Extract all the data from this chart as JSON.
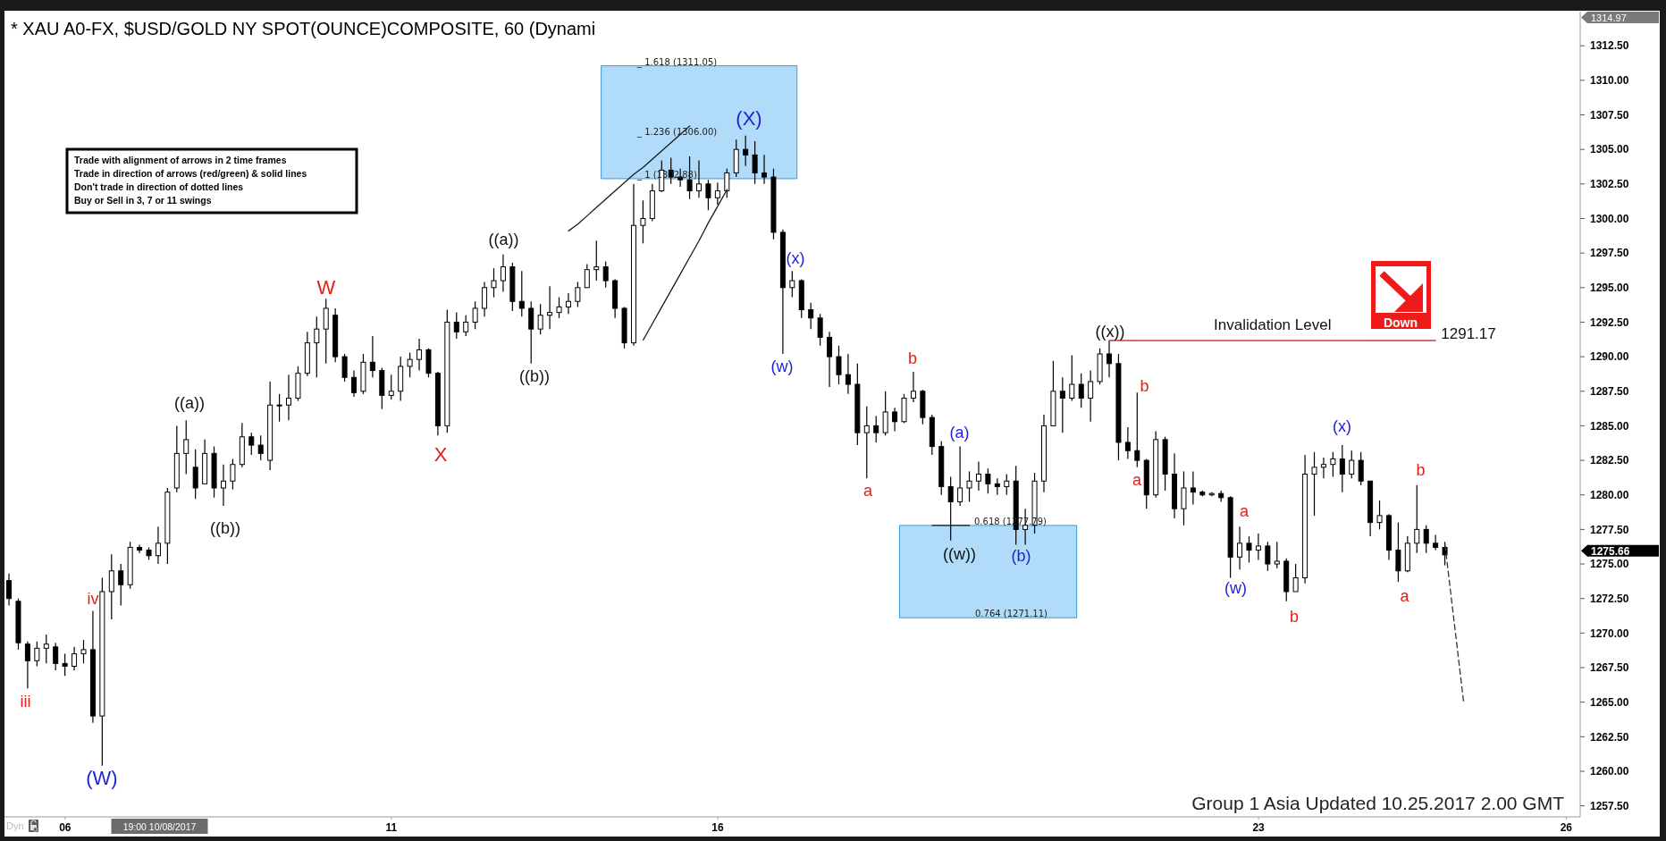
{
  "chart_data": {
    "type": "candlestick",
    "title": "* XAU A0-FX, $USD/GOLD NY SPOT(OUNCE)COMPOSITE, 60 (Dynami",
    "color": "#000000",
    "categories": [
      null,
      null,
      null,
      null,
      null,
      null,
      "06",
      null,
      null,
      null,
      null,
      null,
      null,
      null,
      null,
      null,
      null,
      null,
      null,
      null,
      null,
      null,
      null,
      null,
      null,
      null,
      null,
      null,
      null,
      null,
      null,
      null,
      null,
      null,
      null,
      null,
      null,
      null,
      null,
      null,
      null,
      "11",
      null,
      null,
      null,
      null,
      null,
      null,
      null,
      null,
      null,
      null,
      null,
      null,
      null,
      null,
      null,
      null,
      null,
      null,
      null,
      null,
      null,
      null,
      null,
      null,
      null,
      null,
      null,
      null,
      null,
      null,
      null,
      null,
      null,
      null,
      "16",
      null,
      null,
      null,
      null,
      null,
      null,
      null,
      null,
      null,
      null,
      null,
      null,
      null,
      null,
      null,
      null,
      null,
      null,
      null,
      null,
      null,
      null,
      null,
      null,
      null,
      null,
      null,
      null,
      null,
      null,
      null,
      null,
      null,
      null,
      null,
      null,
      null,
      null,
      null,
      null,
      null,
      null,
      null,
      null,
      null,
      null,
      null,
      null,
      null,
      null,
      null,
      null,
      null,
      null,
      null,
      null,
      null,
      "23",
      null,
      null,
      null,
      null,
      null,
      null,
      null,
      null,
      null,
      null,
      null,
      null,
      null,
      null,
      null,
      null,
      null,
      null,
      null,
      null,
      null,
      null,
      null,
      null,
      null,
      null,
      null,
      null,
      null,
      null,
      null,
      null,
      "26",
      null
    ],
    "ohlc": [
      [
        1273.8,
        1274.3,
        1272.0,
        1272.5
      ],
      [
        1272.3,
        1272.5,
        1268.8,
        1269.3
      ],
      [
        1269.2,
        1269.4,
        1266.0,
        1268.0
      ],
      [
        1268.0,
        1269.4,
        1267.6,
        1268.9
      ],
      [
        1268.9,
        1269.9,
        1267.8,
        1269.2
      ],
      [
        1269.0,
        1269.3,
        1267.3,
        1267.8
      ],
      [
        1267.8,
        1268.5,
        1266.9,
        1267.6
      ],
      [
        1267.6,
        1269.0,
        1267.3,
        1268.5
      ],
      [
        1268.5,
        1269.5,
        1267.8,
        1268.8
      ],
      [
        1268.8,
        1271.6,
        1263.5,
        1264.0
      ],
      [
        1264.0,
        1274.0,
        1260.4,
        1273.0
      ],
      [
        1273.0,
        1275.7,
        1271.0,
        1274.5
      ],
      [
        1274.5,
        1275.0,
        1272.0,
        1273.5
      ],
      [
        1273.5,
        1276.6,
        1273.2,
        1276.2
      ],
      [
        1276.2,
        1276.4,
        1275.8,
        1276.0
      ],
      [
        1276.0,
        1276.2,
        1275.3,
        1275.6
      ],
      [
        1275.6,
        1277.7,
        1275.0,
        1276.5
      ],
      [
        1276.5,
        1280.5,
        1275.0,
        1280.2
      ],
      [
        1280.5,
        1285.0,
        1280.2,
        1283.0
      ],
      [
        1283.0,
        1285.4,
        1281.5,
        1284.0
      ],
      [
        1282.0,
        1283.3,
        1279.7,
        1280.5
      ],
      [
        1280.8,
        1284.0,
        1280.8,
        1283.0
      ],
      [
        1283.0,
        1283.5,
        1279.8,
        1280.5
      ],
      [
        1280.5,
        1282.2,
        1279.2,
        1281.0
      ],
      [
        1281.0,
        1282.6,
        1280.4,
        1282.2
      ],
      [
        1282.2,
        1285.2,
        1282.0,
        1284.2
      ],
      [
        1284.2,
        1284.5,
        1282.9,
        1283.6
      ],
      [
        1283.6,
        1284.3,
        1282.5,
        1283.0
      ],
      [
        1282.5,
        1288.2,
        1281.8,
        1286.5
      ],
      [
        1286.5,
        1287.3,
        1285.3,
        1286.5
      ],
      [
        1286.5,
        1288.7,
        1285.4,
        1287.0
      ],
      [
        1287.0,
        1289.3,
        1286.8,
        1288.8
      ],
      [
        1288.8,
        1291.8,
        1288.6,
        1291.0
      ],
      [
        1291.0,
        1292.9,
        1288.5,
        1292.0
      ],
      [
        1292.0,
        1294.2,
        1289.5,
        1293.5
      ],
      [
        1293.0,
        1293.5,
        1289.6,
        1290.0
      ],
      [
        1290.0,
        1290.2,
        1288.2,
        1288.5
      ],
      [
        1288.5,
        1289.0,
        1287.1,
        1287.4
      ],
      [
        1287.5,
        1290.2,
        1287.3,
        1289.6
      ],
      [
        1289.6,
        1291.5,
        1288.5,
        1289.0
      ],
      [
        1289.0,
        1289.2,
        1286.2,
        1287.2
      ],
      [
        1287.2,
        1288.7,
        1286.9,
        1287.5
      ],
      [
        1287.5,
        1290.0,
        1286.8,
        1289.3
      ],
      [
        1289.3,
        1290.3,
        1288.5,
        1289.8
      ],
      [
        1289.8,
        1291.3,
        1289.0,
        1290.5
      ],
      [
        1290.5,
        1290.6,
        1288.5,
        1288.8
      ],
      [
        1288.8,
        1288.9,
        1284.3,
        1285.0
      ],
      [
        1285.0,
        1293.4,
        1284.5,
        1292.5
      ],
      [
        1292.5,
        1293.2,
        1291.3,
        1291.8
      ],
      [
        1291.8,
        1293.0,
        1291.5,
        1292.5
      ],
      [
        1292.5,
        1294.0,
        1292.0,
        1293.5
      ],
      [
        1293.5,
        1295.4,
        1292.9,
        1295.0
      ],
      [
        1295.0,
        1296.4,
        1294.3,
        1295.5
      ],
      [
        1295.5,
        1297.4,
        1294.7,
        1296.5
      ],
      [
        1296.5,
        1296.8,
        1293.3,
        1294.0
      ],
      [
        1294.0,
        1296.2,
        1292.9,
        1293.5
      ],
      [
        1293.5,
        1294.0,
        1289.5,
        1292.0
      ],
      [
        1292.0,
        1293.8,
        1291.6,
        1293.0
      ],
      [
        1293.0,
        1295.1,
        1292.0,
        1293.2
      ],
      [
        1293.2,
        1294.3,
        1292.8,
        1293.6
      ],
      [
        1293.6,
        1294.6,
        1293.1,
        1294.0
      ],
      [
        1294.0,
        1295.4,
        1293.6,
        1295.0
      ],
      [
        1295.0,
        1296.7,
        1295.0,
        1296.3
      ],
      [
        1296.3,
        1298.4,
        1295.5,
        1296.5
      ],
      [
        1296.5,
        1296.9,
        1295.0,
        1295.5
      ],
      [
        1295.5,
        1295.6,
        1292.8,
        1293.5
      ],
      [
        1293.5,
        1293.6,
        1290.6,
        1291.0
      ],
      [
        1291.0,
        1302.5,
        1290.8,
        1299.5
      ],
      [
        1299.5,
        1301.3,
        1298.2,
        1300.0
      ],
      [
        1300.0,
        1302.5,
        1299.8,
        1302.0
      ],
      [
        1302.0,
        1304.2,
        1301.9,
        1303.5
      ],
      [
        1303.5,
        1304.4,
        1302.5,
        1303.0
      ],
      [
        1303.0,
        1303.6,
        1302.3,
        1302.8
      ],
      [
        1302.8,
        1304.5,
        1301.4,
        1302.0
      ],
      [
        1302.0,
        1304.2,
        1301.5,
        1302.5
      ],
      [
        1302.5,
        1302.8,
        1300.6,
        1301.5
      ],
      [
        1301.5,
        1302.6,
        1301.0,
        1302.0
      ],
      [
        1302.0,
        1303.6,
        1301.5,
        1303.3
      ],
      [
        1303.3,
        1305.7,
        1303.0,
        1305.0
      ],
      [
        1305.0,
        1306.0,
        1303.8,
        1304.6
      ],
      [
        1304.6,
        1305.6,
        1302.5,
        1303.3
      ],
      [
        1303.3,
        1304.6,
        1302.5,
        1303.0
      ],
      [
        1303.0,
        1303.6,
        1298.5,
        1299.0
      ],
      [
        1299.0,
        1299.2,
        1290.2,
        1295.0
      ],
      [
        1295.0,
        1296.2,
        1294.3,
        1295.5
      ],
      [
        1295.5,
        1295.6,
        1292.8,
        1293.4
      ],
      [
        1293.4,
        1293.9,
        1292.0,
        1292.8
      ],
      [
        1292.8,
        1293.1,
        1290.8,
        1291.4
      ],
      [
        1291.4,
        1291.8,
        1287.8,
        1290.0
      ],
      [
        1290.0,
        1290.8,
        1288.0,
        1288.7
      ],
      [
        1288.7,
        1290.2,
        1287.3,
        1288.0
      ],
      [
        1288.0,
        1289.5,
        1283.6,
        1284.5
      ],
      [
        1284.5,
        1286.4,
        1281.2,
        1285.0
      ],
      [
        1285.0,
        1285.7,
        1283.8,
        1284.5
      ],
      [
        1284.5,
        1287.5,
        1284.3,
        1286.0
      ],
      [
        1286.0,
        1286.3,
        1284.6,
        1285.3
      ],
      [
        1285.3,
        1287.3,
        1285.2,
        1287.0
      ],
      [
        1287.0,
        1288.9,
        1286.7,
        1287.5
      ],
      [
        1287.5,
        1287.6,
        1285.1,
        1285.6
      ],
      [
        1285.6,
        1285.8,
        1282.9,
        1283.5
      ],
      [
        1283.5,
        1283.9,
        1280.0,
        1280.6
      ],
      [
        1280.6,
        1281.3,
        1276.7,
        1279.5
      ],
      [
        1279.5,
        1283.5,
        1279.2,
        1280.5
      ],
      [
        1280.5,
        1281.7,
        1279.5,
        1281.0
      ],
      [
        1281.0,
        1282.4,
        1280.3,
        1281.5
      ],
      [
        1281.5,
        1281.9,
        1280.1,
        1280.8
      ],
      [
        1280.8,
        1281.2,
        1280.0,
        1280.6
      ],
      [
        1280.6,
        1281.5,
        1280.0,
        1281.0
      ],
      [
        1281.0,
        1282.1,
        1276.4,
        1277.5
      ],
      [
        1277.5,
        1279.0,
        1276.4,
        1277.8
      ],
      [
        1277.8,
        1281.6,
        1277.2,
        1281.0
      ],
      [
        1281.0,
        1285.8,
        1280.2,
        1285.0
      ],
      [
        1285.0,
        1289.7,
        1285.0,
        1287.5
      ],
      [
        1287.5,
        1288.5,
        1284.5,
        1287.0
      ],
      [
        1287.0,
        1290.1,
        1286.8,
        1288.0
      ],
      [
        1288.0,
        1288.8,
        1286.3,
        1287.0
      ],
      [
        1287.0,
        1289.0,
        1285.3,
        1288.2
      ],
      [
        1288.2,
        1290.6,
        1288.0,
        1290.2
      ],
      [
        1290.2,
        1291.17,
        1288.5,
        1289.5
      ],
      [
        1289.5,
        1290.2,
        1282.5,
        1283.8
      ],
      [
        1283.8,
        1284.9,
        1282.6,
        1283.2
      ],
      [
        1283.2,
        1287.4,
        1282.0,
        1282.5
      ],
      [
        1282.5,
        1282.6,
        1279.0,
        1280.0
      ],
      [
        1280.0,
        1284.6,
        1279.8,
        1284.0
      ],
      [
        1284.0,
        1284.2,
        1280.3,
        1281.5
      ],
      [
        1281.5,
        1283.0,
        1278.3,
        1279.0
      ],
      [
        1279.0,
        1281.7,
        1277.8,
        1280.5
      ],
      [
        1280.5,
        1281.7,
        1279.3,
        1280.2
      ],
      [
        1280.2,
        1280.3,
        1279.9,
        1280.0
      ],
      [
        1280.0,
        1280.2,
        1279.9,
        1280.1
      ],
      [
        1280.1,
        1280.3,
        1279.5,
        1279.8
      ],
      [
        1279.8,
        1279.9,
        1274.0,
        1275.5
      ],
      [
        1275.5,
        1277.7,
        1274.6,
        1276.5
      ],
      [
        1276.5,
        1277.0,
        1275.1,
        1276.0
      ],
      [
        1276.0,
        1277.2,
        1275.3,
        1276.3
      ],
      [
        1276.3,
        1276.6,
        1274.5,
        1275.0
      ],
      [
        1275.0,
        1276.6,
        1274.7,
        1275.2
      ],
      [
        1275.2,
        1275.4,
        1272.3,
        1273.0
      ],
      [
        1273.0,
        1275.0,
        1273.0,
        1274.0
      ],
      [
        1274.0,
        1282.9,
        1273.6,
        1281.5
      ],
      [
        1281.5,
        1283.1,
        1278.5,
        1282.0
      ],
      [
        1282.0,
        1282.7,
        1281.2,
        1282.2
      ],
      [
        1282.2,
        1283.1,
        1281.3,
        1282.6
      ],
      [
        1282.6,
        1283.6,
        1280.2,
        1281.5
      ],
      [
        1281.5,
        1283.2,
        1281.2,
        1282.5
      ],
      [
        1282.5,
        1283.1,
        1280.7,
        1281.0
      ],
      [
        1281.0,
        1281.0,
        1277.0,
        1278.0
      ],
      [
        1278.0,
        1279.6,
        1277.5,
        1278.5
      ],
      [
        1278.5,
        1278.6,
        1275.3,
        1276.0
      ],
      [
        1276.0,
        1278.0,
        1273.7,
        1274.5
      ],
      [
        1274.5,
        1277.0,
        1274.4,
        1276.5
      ],
      [
        1276.5,
        1280.7,
        1275.8,
        1277.5
      ],
      [
        1277.5,
        1277.8,
        1275.8,
        1276.5
      ],
      [
        1276.5,
        1277.1,
        1276.0,
        1276.2
      ],
      [
        1276.2,
        1276.6,
        1274.9,
        1275.66
      ],
      null,
      null,
      null,
      null,
      null,
      null,
      null,
      null,
      null,
      null,
      null,
      null,
      null,
      null
    ],
    "series": [
      {
        "type": "line",
        "name": "Invalidation Level",
        "color": "#cc3b3b",
        "values": [
          null,
          null,
          null,
          null,
          null,
          null,
          null,
          null,
          null,
          null,
          null,
          null,
          null,
          null,
          null,
          null,
          null,
          null,
          null,
          null,
          null,
          null,
          null,
          null,
          null,
          null,
          null,
          null,
          null,
          null,
          null,
          null,
          null,
          null,
          null,
          null,
          null,
          null,
          null,
          null,
          null,
          null,
          null,
          null,
          null,
          null,
          null,
          null,
          null,
          null,
          null,
          null,
          null,
          null,
          null,
          null,
          null,
          null,
          null,
          null,
          null,
          null,
          null,
          null,
          null,
          null,
          null,
          null,
          null,
          null,
          null,
          null,
          null,
          null,
          null,
          null,
          null,
          null,
          null,
          null,
          null,
          null,
          null,
          null,
          null,
          null,
          null,
          null,
          null,
          null,
          null,
          null,
          null,
          null,
          null,
          null,
          null,
          null,
          null,
          null,
          null,
          null,
          null,
          null,
          null,
          null,
          null,
          null,
          null,
          null,
          null,
          null,
          null,
          null,
          null,
          null,
          null,
          null,
          1291.17,
          1291.17,
          1291.17,
          1291.17,
          1291.17,
          1291.17,
          1291.17,
          1291.17,
          1291.17,
          1291.17,
          1291.17,
          1291.17,
          1291.17,
          1291.17,
          1291.17,
          1291.17,
          1291.17,
          1291.17,
          1291.17,
          1291.17,
          1291.17,
          1291.17,
          1291.17,
          1291.17,
          1291.17,
          1291.17,
          1291.17,
          1291.17,
          1291.17,
          1291.17,
          1291.17,
          1291.17,
          1291.17,
          1291.17,
          1291.17,
          1291.17,
          null,
          null,
          null,
          null,
          null,
          null,
          null,
          null,
          null,
          null,
          null,
          null,
          null,
          null,
          null
        ],
        "value_labels": [
          null,
          null,
          null,
          null,
          null,
          null,
          null,
          null,
          null,
          null,
          null,
          null,
          null,
          null,
          null,
          null,
          null,
          null,
          null,
          null,
          null,
          null,
          null,
          null,
          null,
          null,
          null,
          null,
          null,
          null,
          null,
          null,
          null,
          null,
          null,
          null,
          null,
          null,
          null,
          null,
          null,
          null,
          null,
          null,
          null,
          null,
          null,
          null,
          null,
          null,
          null,
          null,
          null,
          null,
          null,
          null,
          null,
          null,
          null,
          null,
          null,
          null,
          null,
          null,
          null,
          null,
          null,
          null,
          null,
          null,
          null,
          null,
          null,
          null,
          null,
          null,
          null,
          null,
          null,
          null,
          null,
          null,
          null,
          null,
          null,
          null,
          null,
          null,
          null,
          null,
          null,
          null,
          null,
          null,
          null,
          null,
          null,
          null,
          null,
          null,
          null,
          null,
          null,
          null,
          null,
          null,
          null,
          null,
          null,
          null,
          null,
          null,
          null,
          null,
          null,
          null,
          null,
          null,
          null,
          null,
          null,
          null,
          null,
          null,
          null,
          null,
          null,
          null,
          null,
          null,
          null,
          null,
          null,
          null,
          null,
          null,
          null,
          null,
          null,
          null,
          null,
          null,
          null,
          null,
          null,
          null,
          null,
          null,
          null,
          null,
          null,
          null,
          null,
          "1291.17",
          null,
          null,
          null,
          null,
          null,
          null,
          null,
          null,
          null,
          null,
          null,
          null,
          null,
          null,
          null
        ]
      },
      {
        "type": "line",
        "color": "#1a1a1a",
        "values": [
          null,
          null,
          null,
          null,
          null,
          null,
          null,
          null,
          null,
          null,
          null,
          null,
          null,
          null,
          null,
          null,
          null,
          null,
          null,
          null,
          null,
          null,
          null,
          null,
          null,
          null,
          null,
          null,
          null,
          null,
          null,
          null,
          null,
          null,
          null,
          null,
          null,
          null,
          null,
          null,
          null,
          null,
          null,
          null,
          null,
          null,
          null,
          null,
          null,
          null,
          null,
          null,
          null,
          null,
          null,
          null,
          null,
          null,
          null,
          null,
          1299.1,
          1299.6,
          1300.2,
          1300.8,
          1301.4,
          1302.0,
          1302.6,
          1303.2,
          1303.7,
          1304.3,
          1304.9,
          1305.5,
          1306.1,
          1306.7,
          null,
          null,
          null,
          null,
          null,
          null,
          null,
          null,
          null,
          null,
          null,
          null,
          null,
          null,
          null,
          null,
          null,
          null,
          null,
          null,
          null,
          null,
          null,
          null,
          null,
          null,
          null,
          null,
          null,
          null,
          null,
          null,
          null,
          null,
          null,
          null,
          null,
          null,
          null,
          null,
          null,
          null,
          null,
          null,
          null,
          null,
          null,
          null,
          null,
          null,
          null,
          null,
          null,
          null,
          null,
          null,
          null,
          null,
          null,
          null,
          null,
          null,
          null,
          null,
          null,
          null,
          null,
          null,
          null,
          null,
          null,
          null,
          null,
          null,
          null,
          null,
          null,
          null,
          null,
          null,
          null,
          null,
          null,
          null,
          null,
          null,
          null,
          null,
          null,
          null,
          null,
          null,
          null,
          null,
          null
        ]
      },
      {
        "type": "line",
        "color": "#1a1a1a",
        "values": [
          null,
          null,
          null,
          null,
          null,
          null,
          null,
          null,
          null,
          null,
          null,
          null,
          null,
          null,
          null,
          null,
          null,
          null,
          null,
          null,
          null,
          null,
          null,
          null,
          null,
          null,
          null,
          null,
          null,
          null,
          null,
          null,
          null,
          null,
          null,
          null,
          null,
          null,
          null,
          null,
          null,
          null,
          null,
          null,
          null,
          null,
          null,
          null,
          null,
          null,
          null,
          null,
          null,
          null,
          null,
          null,
          null,
          null,
          null,
          null,
          null,
          null,
          null,
          null,
          null,
          null,
          null,
          null,
          1291.2,
          1292.4,
          1293.6,
          1294.8,
          1296.0,
          1297.2,
          1298.4,
          1299.7,
          1300.9,
          1302.1,
          null,
          null,
          null,
          null,
          null,
          null,
          null,
          null,
          null,
          null,
          null,
          null,
          null,
          null,
          null,
          null,
          null,
          null,
          null,
          null,
          null,
          null,
          null,
          null,
          null,
          null,
          null,
          null,
          null,
          null,
          null,
          null,
          null,
          null,
          null,
          null,
          null,
          null,
          null,
          null,
          null,
          null,
          null,
          null,
          null,
          null,
          null,
          null,
          null,
          null,
          null,
          null,
          null,
          null,
          null,
          null,
          null,
          null,
          null,
          null,
          null,
          null,
          null,
          null,
          null,
          null,
          null,
          null,
          null,
          null,
          null,
          null,
          null,
          null,
          null,
          null,
          null,
          null,
          null,
          null,
          null,
          null,
          null,
          null,
          null,
          null,
          null,
          null,
          null,
          null,
          null
        ]
      },
      {
        "type": "line",
        "color": "#1a1a1a",
        "values": [
          null,
          null,
          null,
          null,
          null,
          null,
          null,
          null,
          null,
          null,
          null,
          null,
          null,
          null,
          null,
          null,
          null,
          null,
          null,
          null,
          null,
          null,
          null,
          null,
          null,
          null,
          null,
          null,
          null,
          null,
          null,
          null,
          null,
          null,
          null,
          null,
          null,
          null,
          null,
          null,
          null,
          null,
          null,
          null,
          null,
          null,
          null,
          null,
          null,
          null,
          null,
          null,
          null,
          null,
          null,
          null,
          null,
          null,
          null,
          null,
          null,
          null,
          null,
          null,
          null,
          null,
          null,
          null,
          null,
          null,
          null,
          null,
          null,
          null,
          null,
          null,
          null,
          null,
          null,
          null,
          null,
          null,
          null,
          null,
          null,
          null,
          null,
          null,
          null,
          null,
          null,
          null,
          null,
          null,
          null,
          null,
          null,
          null,
          null,
          1277.79,
          1277.79,
          1277.79,
          1277.79,
          1277.79,
          null,
          null,
          null,
          null,
          null,
          null,
          null,
          null,
          null,
          null,
          null,
          null,
          null,
          null,
          null,
          null,
          null,
          null,
          null,
          null,
          null,
          null,
          null,
          null,
          null,
          null,
          null,
          null,
          null,
          null,
          null,
          null,
          null,
          null,
          null,
          null,
          null,
          null,
          null,
          null,
          null,
          null,
          null,
          null,
          null,
          null,
          null,
          null,
          null,
          null,
          null,
          null,
          null,
          null,
          null,
          null,
          null,
          null,
          null,
          null,
          null,
          null,
          null,
          null,
          null
        ]
      },
      {
        "type": "line",
        "color": "#333333",
        "line_style": "dashed",
        "values": [
          null,
          null,
          null,
          null,
          null,
          null,
          null,
          null,
          null,
          null,
          null,
          null,
          null,
          null,
          null,
          null,
          null,
          null,
          null,
          null,
          null,
          null,
          null,
          null,
          null,
          null,
          null,
          null,
          null,
          null,
          null,
          null,
          null,
          null,
          null,
          null,
          null,
          null,
          null,
          null,
          null,
          null,
          null,
          null,
          null,
          null,
          null,
          null,
          null,
          null,
          null,
          null,
          null,
          null,
          null,
          null,
          null,
          null,
          null,
          null,
          null,
          null,
          null,
          null,
          null,
          null,
          null,
          null,
          null,
          null,
          null,
          null,
          null,
          null,
          null,
          null,
          null,
          null,
          null,
          null,
          null,
          null,
          null,
          null,
          null,
          null,
          null,
          null,
          null,
          null,
          null,
          null,
          null,
          null,
          null,
          null,
          null,
          null,
          null,
          null,
          null,
          null,
          null,
          null,
          null,
          null,
          null,
          null,
          null,
          null,
          null,
          null,
          null,
          null,
          null,
          null,
          null,
          null,
          null,
          null,
          null,
          null,
          null,
          null,
          null,
          null,
          null,
          null,
          null,
          null,
          null,
          null,
          null,
          null,
          null,
          null,
          null,
          null,
          null,
          null,
          null,
          null,
          null,
          null,
          null,
          null,
          null,
          null,
          null,
          null,
          null,
          null,
          null,
          null,
          1276.4,
          1270.7,
          1265.0,
          null,
          null,
          null,
          null,
          null,
          null,
          null,
          null,
          null,
          null,
          null,
          null
        ]
      }
    ],
    "bands": [
      {
        "axis": "y",
        "from": 1302.88,
        "to": 1311.05,
        "color": "#b0dcfa"
      },
      {
        "axis": "y",
        "from": 1271.11,
        "to": 1277.79,
        "color": "#b0dcfa"
      }
    ],
    "ylim": [
      1256.7,
      1314.97
    ],
    "yticks": [
      {
        "value": 1257.5,
        "label": "1257.50"
      },
      {
        "value": 1260,
        "label": "1260.00"
      },
      {
        "value": 1262.5,
        "label": "1262.50"
      },
      {
        "value": 1265,
        "label": "1265.00"
      },
      {
        "value": 1267.5,
        "label": "1267.50"
      },
      {
        "value": 1270,
        "label": "1270.00"
      },
      {
        "value": 1272.5,
        "label": "1272.50"
      },
      {
        "value": 1275,
        "label": "1275.00"
      },
      {
        "value": 1277.5,
        "label": "1277.50"
      },
      {
        "value": 1280,
        "label": "1280.00"
      },
      {
        "value": 1282.5,
        "label": "1282.50"
      },
      {
        "value": 1285,
        "label": "1285.00"
      },
      {
        "value": 1287.5,
        "label": "1287.50"
      },
      {
        "value": 1290,
        "label": "1290.00"
      },
      {
        "value": 1292.5,
        "label": "1292.50"
      },
      {
        "value": 1295,
        "label": "1295.00"
      },
      {
        "value": 1297.5,
        "label": "1297.50"
      },
      {
        "value": 1300,
        "label": "1300.00"
      },
      {
        "value": 1302.5,
        "label": "1302.50"
      },
      {
        "value": 1305,
        "label": "1305.00"
      },
      {
        "value": 1307.5,
        "label": "1307.50"
      },
      {
        "value": 1310,
        "label": "1310.00"
      },
      {
        "value": 1312.5,
        "label": "1312.50"
      }
    ],
    "annotations": [
      "Trade with alignment of arrows in 2 time frames",
      "Trade in direction of arrows (red/green) & solid lines",
      "Don't trade in direction of dotted lines",
      "Buy or Sell in 3, 7 or 11 swings",
      "Group 1 Asia Updated 10.25.2017 2.00 GMT",
      "Dyn",
      "19:00 10/08/2017",
      "1314.97",
      "1275.66",
      "Down",
      {
        "text": "_ 1.618 (1311.05)",
        "y": 1311.05
      },
      "_ 1.236 (1306.00)",
      {
        "text": "_ 1 (1302.88)",
        "y": 1302.88
      },
      {
        "text": "0.618 (1277.79)",
        "y": 1277.79
      },
      {
        "text": "0.764 (1271.11)",
        "y": 1271.11
      },
      "iii",
      "iv",
      "(W)",
      "((a))",
      "((b))",
      "W",
      "X",
      "((a))",
      "((b))",
      "(X)",
      "(w)",
      "(x)",
      "a",
      "b",
      "(a)",
      "((w))",
      "(b)",
      "((x))",
      "a",
      "b",
      "(w)",
      "a",
      "b",
      "(x)",
      "a",
      "b"
    ]
  }
}
